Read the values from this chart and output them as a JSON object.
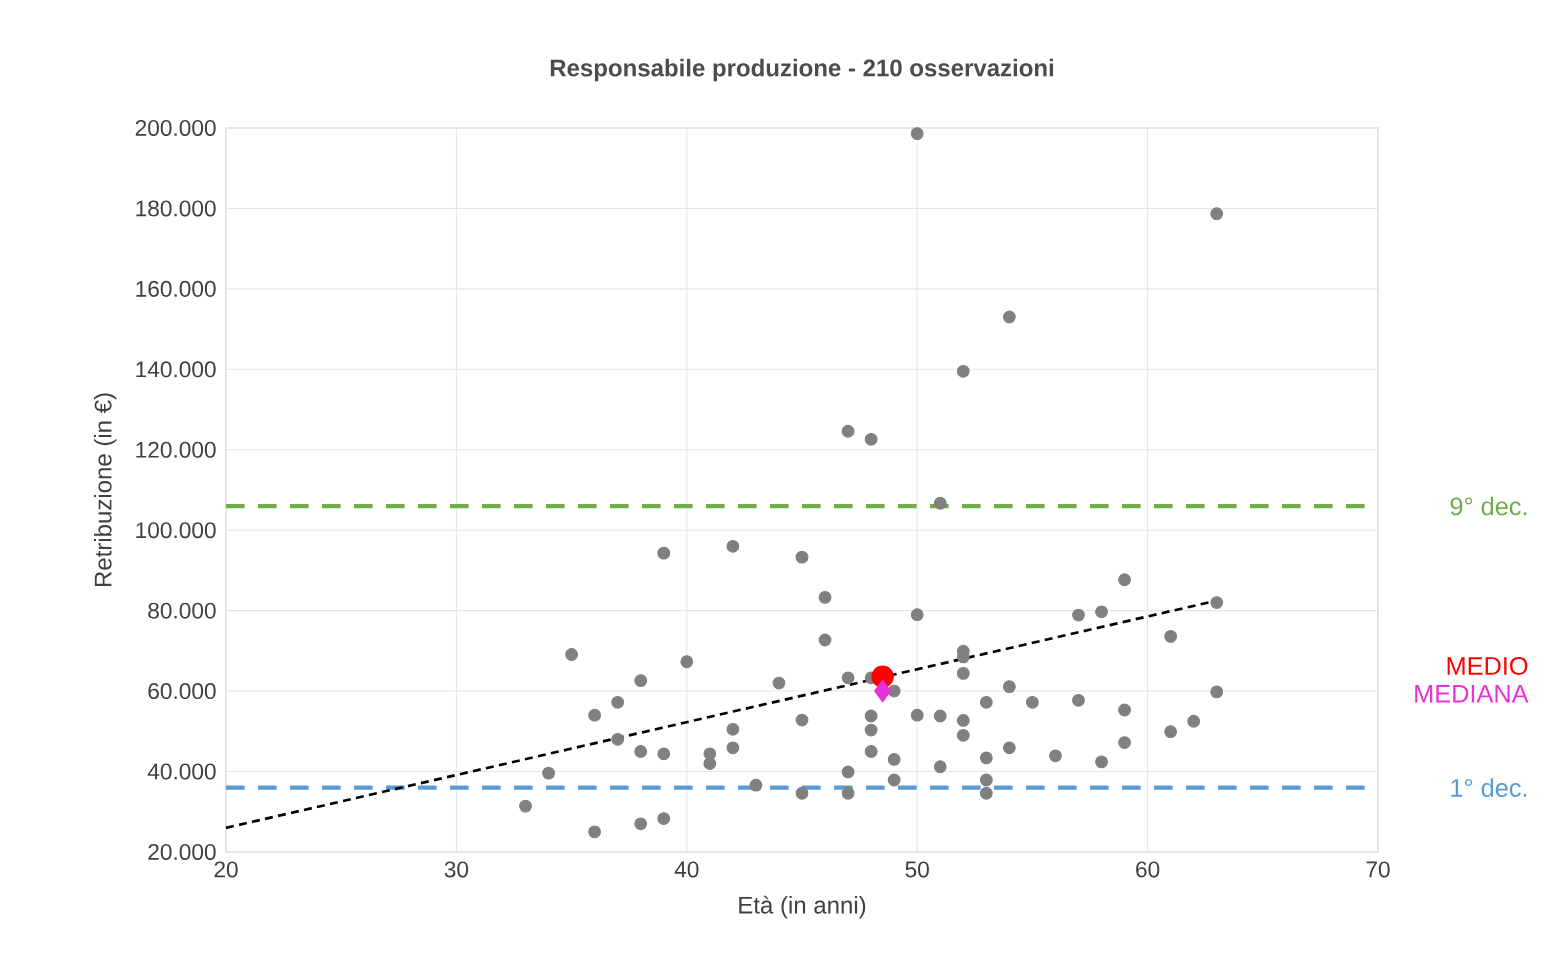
{
  "chart_data": {
    "type": "scatter",
    "title": "Responsabile produzione - 210 osservazioni",
    "xlabel": "Età (in anni)",
    "ylabel": "Retribuzione (in €)",
    "xlim": [
      20,
      70
    ],
    "xticks": [
      20,
      30,
      40,
      50,
      60,
      70
    ],
    "ylim": [
      20000,
      200000
    ],
    "yticks": [
      {
        "value": 20000,
        "label": "20.000"
      },
      {
        "value": 40000,
        "label": "40.000"
      },
      {
        "value": 60000,
        "label": "60.000"
      },
      {
        "value": 80000,
        "label": "80.000"
      },
      {
        "value": 100000,
        "label": "100.000"
      },
      {
        "value": 120000,
        "label": "120.000"
      },
      {
        "value": 140000,
        "label": "140.000"
      },
      {
        "value": 160000,
        "label": "160.000"
      },
      {
        "value": 180000,
        "label": "180.000"
      },
      {
        "value": 200000,
        "label": "200.000"
      }
    ],
    "grid": true,
    "series": [
      {
        "color": "#808080",
        "marker": "circle",
        "x": [
          33,
          34,
          35,
          36,
          36,
          37,
          37,
          38,
          38,
          38,
          39,
          39,
          39,
          40,
          41,
          41,
          42,
          42,
          42,
          43,
          44,
          45,
          45,
          45,
          46,
          46,
          47,
          47,
          47,
          47,
          48,
          48,
          48,
          48,
          48,
          49,
          49,
          49,
          50,
          50,
          50,
          51,
          51,
          51,
          52,
          52,
          52,
          52,
          52,
          52,
          53,
          53,
          53,
          53,
          54,
          54,
          54,
          55,
          56,
          57,
          57,
          58,
          58,
          59,
          59,
          59,
          61,
          61,
          62,
          63,
          63,
          63
        ],
        "values": [
          31400,
          39600,
          69100,
          54000,
          25000,
          57200,
          48000,
          62600,
          45000,
          27000,
          94300,
          44400,
          28300,
          67300,
          44400,
          42000,
          96000,
          50500,
          45900,
          36600,
          62000,
          93300,
          52800,
          34600,
          83300,
          72700,
          124600,
          63300,
          39900,
          34600,
          122600,
          63300,
          53800,
          50300,
          45000,
          60000,
          43000,
          37900,
          198600,
          79000,
          54000,
          106700,
          53800,
          41200,
          139500,
          69900,
          68500,
          64400,
          52700,
          49000,
          57200,
          43400,
          37900,
          34600,
          153000,
          61100,
          45900,
          57200,
          43900,
          78900,
          57700,
          79700,
          42400,
          87700,
          55300,
          47200,
          73600,
          49900,
          52500,
          178700,
          82000,
          59800
        ]
      },
      {
        "type": "line",
        "color": "#000000",
        "marker": "none",
        "line_style": "dashed",
        "x": [
          20,
          63
        ],
        "values": [
          26000,
          82500
        ]
      },
      {
        "type": "scatter",
        "name": "MEDIO",
        "color": "#ff0000",
        "marker": "circle",
        "x": [
          48.5
        ],
        "values": [
          63600
        ]
      },
      {
        "type": "scatter",
        "name": "MEDIANA",
        "color": "#e632d9",
        "marker": "diamond",
        "x": [
          48.5
        ],
        "values": [
          60000
        ]
      }
    ],
    "ref_lines": [
      {
        "axis": "y",
        "value": 106000,
        "label": "9° dec.",
        "color": "#70ad47",
        "line_style": "dashed"
      },
      {
        "axis": "y",
        "value": 36000,
        "label": "1° dec.",
        "color": "#5b9bd5",
        "line_style": "dashed"
      }
    ]
  }
}
